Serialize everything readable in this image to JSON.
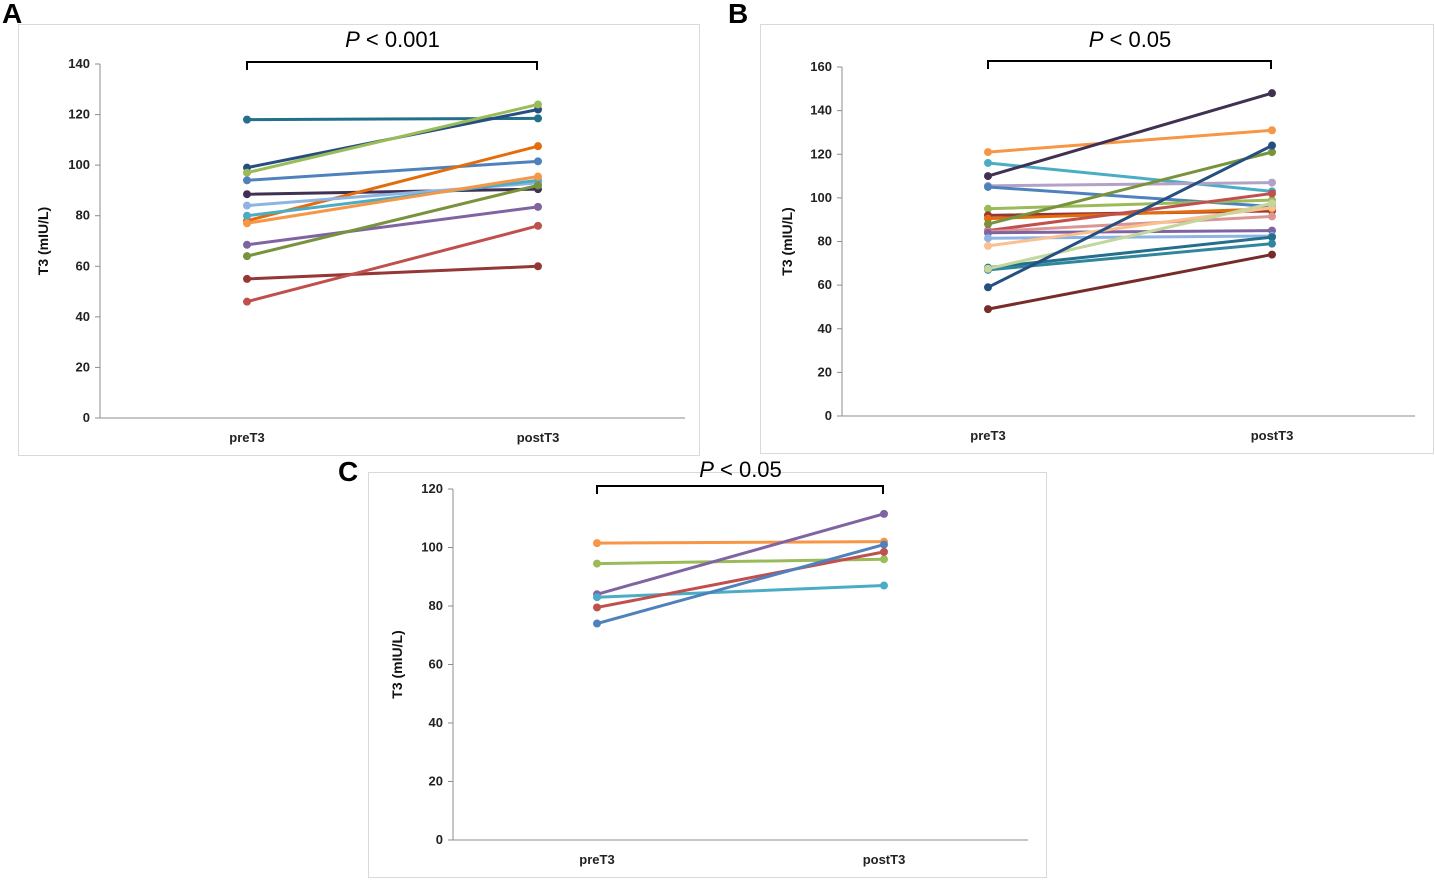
{
  "panels": [
    {
      "letter": "A",
      "title_italic": "P",
      "title_rest": " < 0.001",
      "chart_data": {
        "type": "line",
        "categories": [
          "preT3",
          "postT3"
        ],
        "ylabel": "T3 (mIU/L)",
        "ylim": [
          0,
          140
        ],
        "yticks": [
          0,
          20,
          40,
          60,
          80,
          100,
          120,
          140
        ],
        "series": [
          {
            "name": "s1",
            "color": "#236f8c",
            "values": [
              118,
              118.5
            ]
          },
          {
            "name": "s2",
            "color": "#254f80",
            "values": [
              99,
              122
            ]
          },
          {
            "name": "s3",
            "color": "#9bbb59",
            "values": [
              97,
              124
            ]
          },
          {
            "name": "s4",
            "color": "#4f81bd",
            "values": [
              94,
              101.5
            ]
          },
          {
            "name": "s5",
            "color": "#403152",
            "values": [
              88.5,
              90.5
            ]
          },
          {
            "name": "s6",
            "color": "#e46c0a",
            "values": [
              78,
              107.5
            ]
          },
          {
            "name": "s7",
            "color": "#8eb4e3",
            "values": [
              84,
              93
            ]
          },
          {
            "name": "s8",
            "color": "#4bacc6",
            "values": [
              80,
              94
            ]
          },
          {
            "name": "s9",
            "color": "#f79646",
            "values": [
              77,
              95.5
            ]
          },
          {
            "name": "s10",
            "color": "#8064a2",
            "values": [
              68.5,
              83.5
            ]
          },
          {
            "name": "s11",
            "color": "#77933c",
            "values": [
              64,
              92
            ]
          },
          {
            "name": "s12",
            "color": "#953735",
            "values": [
              55,
              60
            ]
          },
          {
            "name": "s13",
            "color": "#c0504d",
            "values": [
              46,
              76
            ]
          }
        ]
      }
    },
    {
      "letter": "B",
      "title_italic": "P",
      "title_rest": " < 0.05",
      "chart_data": {
        "type": "line",
        "categories": [
          "preT3",
          "postT3"
        ],
        "ylabel": "T3 (mIU/L)",
        "ylim": [
          0,
          160
        ],
        "yticks": [
          0,
          20,
          40,
          60,
          80,
          100,
          120,
          140,
          160
        ],
        "series": [
          {
            "name": "s1",
            "color": "#f79646",
            "values": [
              121,
              131
            ]
          },
          {
            "name": "s2",
            "color": "#4bacc6",
            "values": [
              116,
              103
            ]
          },
          {
            "name": "s3",
            "color": "#403152",
            "values": [
              110,
              148
            ]
          },
          {
            "name": "s4",
            "color": "#b3a2c7",
            "values": [
              105.5,
              107
            ]
          },
          {
            "name": "s5",
            "color": "#4f81bd",
            "values": [
              105,
              96
            ]
          },
          {
            "name": "s6",
            "color": "#9bbb59",
            "values": [
              95,
              99
            ]
          },
          {
            "name": "s7",
            "color": "#953735",
            "values": [
              92,
              94
            ]
          },
          {
            "name": "s8",
            "color": "#e46c0a",
            "values": [
              90.5,
              95
            ]
          },
          {
            "name": "s9",
            "color": "#77933c",
            "values": [
              88,
              121
            ]
          },
          {
            "name": "s10",
            "color": "#c0504d",
            "values": [
              85,
              102
            ]
          },
          {
            "name": "s11",
            "color": "#d99694",
            "values": [
              84.5,
              91.5
            ]
          },
          {
            "name": "s12",
            "color": "#8064a2",
            "values": [
              84,
              85
            ]
          },
          {
            "name": "s13",
            "color": "#8eb4e3",
            "values": [
              81.5,
              82.5
            ]
          },
          {
            "name": "s14",
            "color": "#fac090",
            "values": [
              78,
              95.5
            ]
          },
          {
            "name": "s15",
            "color": "#236f8c",
            "values": [
              68,
              82
            ]
          },
          {
            "name": "s16",
            "color": "#31859c",
            "values": [
              67,
              79
            ]
          },
          {
            "name": "s17",
            "color": "#c3d69b",
            "values": [
              67.5,
              97.5
            ]
          },
          {
            "name": "s18",
            "color": "#254f80",
            "values": [
              59,
              124
            ]
          },
          {
            "name": "s19",
            "color": "#772c2a",
            "values": [
              49,
              74
            ]
          }
        ]
      }
    },
    {
      "letter": "C",
      "title_italic": "P",
      "title_rest": " < 0.05",
      "chart_data": {
        "type": "line",
        "categories": [
          "preT3",
          "postT3"
        ],
        "ylabel": "T3 (mIU/L)",
        "ylim": [
          0,
          120
        ],
        "yticks": [
          0,
          20,
          40,
          60,
          80,
          100,
          120
        ],
        "series": [
          {
            "name": "s1",
            "color": "#f79646",
            "values": [
              101.5,
              102
            ]
          },
          {
            "name": "s2",
            "color": "#9bbb59",
            "values": [
              94.5,
              96
            ]
          },
          {
            "name": "s3",
            "color": "#8064a2",
            "values": [
              84,
              111.5
            ]
          },
          {
            "name": "s4",
            "color": "#4bacc6",
            "values": [
              83,
              87
            ]
          },
          {
            "name": "s5",
            "color": "#c0504d",
            "values": [
              79.5,
              98.5
            ]
          },
          {
            "name": "s6",
            "color": "#4f81bd",
            "values": [
              74,
              101
            ]
          }
        ]
      }
    }
  ]
}
